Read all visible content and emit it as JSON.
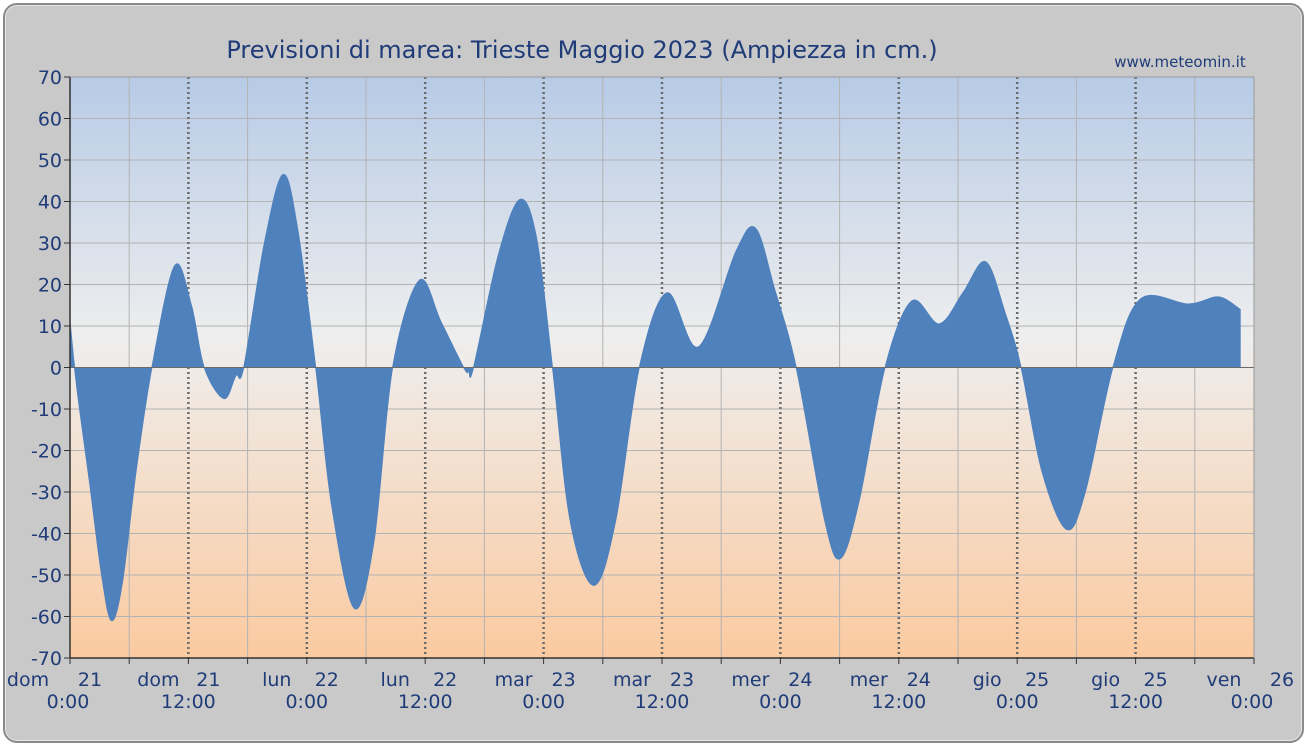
{
  "chart_data": {
    "type": "area",
    "title": "Previsioni di marea: Trieste Maggio 2023 (Ampiezza in cm.)",
    "source": "www.meteomin.it",
    "xlabel": "",
    "ylabel": "",
    "ylim": [
      -70,
      70
    ],
    "yticks": [
      70,
      60,
      50,
      40,
      30,
      20,
      10,
      0,
      -10,
      -20,
      -30,
      -40,
      -50,
      -60,
      -70
    ],
    "x_unit": "hours from dom 21 0:00",
    "xlim": [
      0,
      120
    ],
    "xticks": [
      {
        "x": 0,
        "day": "dom",
        "date": "21",
        "time": "0:00"
      },
      {
        "x": 12,
        "day": "dom",
        "date": "21",
        "time": "12:00"
      },
      {
        "x": 24,
        "day": "lun",
        "date": "22",
        "time": "0:00"
      },
      {
        "x": 36,
        "day": "lun",
        "date": "22",
        "time": "12:00"
      },
      {
        "x": 48,
        "day": "mar",
        "date": "23",
        "time": "0:00"
      },
      {
        "x": 60,
        "day": "mar",
        "date": "23",
        "time": "12:00"
      },
      {
        "x": 72,
        "day": "mer",
        "date": "24",
        "time": "0:00"
      },
      {
        "x": 84,
        "day": "mer",
        "date": "24",
        "time": "12:00"
      },
      {
        "x": 96,
        "day": "gio",
        "date": "25",
        "time": "0:00"
      },
      {
        "x": 108,
        "day": "gio",
        "date": "25",
        "time": "12:00"
      },
      {
        "x": 120,
        "day": "ven",
        "date": "26",
        "time": "0:00"
      }
    ],
    "grid": true,
    "series": [
      {
        "color": "#4f81bd",
        "points": [
          [
            0,
            11
          ],
          [
            0.7,
            -5
          ],
          [
            2,
            -28
          ],
          [
            3.2,
            -50
          ],
          [
            4.2,
            -61
          ],
          [
            5.3,
            -52
          ],
          [
            6.7,
            -25
          ],
          [
            8.3,
            0
          ],
          [
            10.6,
            24.5
          ],
          [
            12.3,
            15
          ],
          [
            13.6,
            0
          ],
          [
            15.6,
            -7.5
          ],
          [
            16.8,
            -2
          ],
          [
            17.6,
            0
          ],
          [
            19.7,
            30
          ],
          [
            21.6,
            46.5
          ],
          [
            23.1,
            33
          ],
          [
            24.9,
            0
          ],
          [
            26.5,
            -33
          ],
          [
            28.8,
            -58
          ],
          [
            30.8,
            -42
          ],
          [
            32.7,
            0
          ],
          [
            35.4,
            21
          ],
          [
            37.6,
            11
          ],
          [
            39.9,
            0
          ],
          [
            40.4,
            -1
          ],
          [
            40.9,
            0
          ],
          [
            43.4,
            27
          ],
          [
            45.6,
            40.5
          ],
          [
            47.3,
            31
          ],
          [
            48.9,
            0
          ],
          [
            50.7,
            -37
          ],
          [
            53.1,
            -52.5
          ],
          [
            55.3,
            -37
          ],
          [
            57.7,
            0
          ],
          [
            60.5,
            18
          ],
          [
            63.7,
            5
          ],
          [
            67.5,
            28
          ],
          [
            69.5,
            33.5
          ],
          [
            71.4,
            19
          ],
          [
            73.6,
            0
          ],
          [
            76.5,
            -37
          ],
          [
            78.1,
            -46
          ],
          [
            80.0,
            -32
          ],
          [
            82.6,
            0
          ],
          [
            85.3,
            16
          ],
          [
            88.1,
            10.5
          ],
          [
            90.5,
            18
          ],
          [
            92.8,
            25.5
          ],
          [
            94.8,
            13
          ],
          [
            96.4,
            0
          ],
          [
            98.5,
            -25
          ],
          [
            101.0,
            -39
          ],
          [
            102.9,
            -30
          ],
          [
            105.7,
            0
          ],
          [
            108.5,
            16.5
          ],
          [
            113.4,
            15.3
          ],
          [
            116.4,
            17
          ],
          [
            118.6,
            14
          ]
        ]
      }
    ]
  }
}
